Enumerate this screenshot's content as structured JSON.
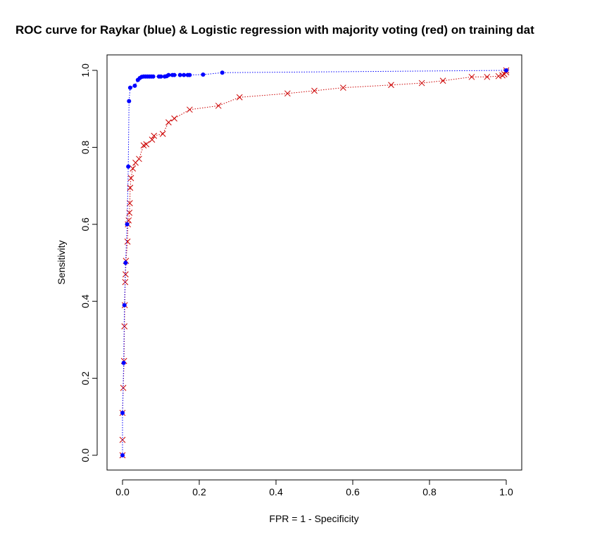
{
  "chart_data": {
    "type": "line",
    "title": "ROC curve for Raykar (blue) & Logistic regression with majority voting (red) on training dat",
    "xlabel": "FPR = 1 - Specificity",
    "ylabel": "Sensitivity",
    "xlim": [
      0,
      1
    ],
    "ylim": [
      0,
      1
    ],
    "x_ticks": [
      "0.0",
      "0.2",
      "0.4",
      "0.6",
      "0.8",
      "1.0"
    ],
    "y_ticks": [
      "0.0",
      "0.2",
      "0.4",
      "0.6",
      "0.8",
      "1.0"
    ],
    "grid": false,
    "legend": "none",
    "series": [
      {
        "color": "#0000ff",
        "marker": "dot",
        "line": "dotted",
        "points": [
          [
            0.0,
            0.0
          ],
          [
            0.0,
            0.11
          ],
          [
            0.003,
            0.24
          ],
          [
            0.005,
            0.39
          ],
          [
            0.008,
            0.5
          ],
          [
            0.012,
            0.6
          ],
          [
            0.015,
            0.75
          ],
          [
            0.017,
            0.92
          ],
          [
            0.02,
            0.955
          ],
          [
            0.032,
            0.96
          ],
          [
            0.04,
            0.975
          ],
          [
            0.045,
            0.98
          ],
          [
            0.05,
            0.983
          ],
          [
            0.055,
            0.984
          ],
          [
            0.06,
            0.984
          ],
          [
            0.065,
            0.984
          ],
          [
            0.07,
            0.984
          ],
          [
            0.075,
            0.984
          ],
          [
            0.08,
            0.984
          ],
          [
            0.095,
            0.984
          ],
          [
            0.1,
            0.984
          ],
          [
            0.11,
            0.984
          ],
          [
            0.115,
            0.985
          ],
          [
            0.12,
            0.988
          ],
          [
            0.13,
            0.988
          ],
          [
            0.135,
            0.988
          ],
          [
            0.15,
            0.988
          ],
          [
            0.16,
            0.988
          ],
          [
            0.17,
            0.988
          ],
          [
            0.175,
            0.988
          ],
          [
            0.21,
            0.989
          ],
          [
            0.26,
            0.994
          ],
          [
            1.0,
            1.0
          ]
        ]
      },
      {
        "color": "#cc0000",
        "marker": "x",
        "line": "dotted",
        "points": [
          [
            0.0,
            0.0
          ],
          [
            0.0,
            0.04
          ],
          [
            0.0,
            0.11
          ],
          [
            0.002,
            0.175
          ],
          [
            0.004,
            0.245
          ],
          [
            0.005,
            0.335
          ],
          [
            0.006,
            0.39
          ],
          [
            0.007,
            0.45
          ],
          [
            0.008,
            0.47
          ],
          [
            0.009,
            0.505
          ],
          [
            0.013,
            0.555
          ],
          [
            0.014,
            0.6
          ],
          [
            0.016,
            0.61
          ],
          [
            0.018,
            0.63
          ],
          [
            0.019,
            0.655
          ],
          [
            0.02,
            0.695
          ],
          [
            0.022,
            0.72
          ],
          [
            0.027,
            0.745
          ],
          [
            0.034,
            0.76
          ],
          [
            0.043,
            0.77
          ],
          [
            0.055,
            0.805
          ],
          [
            0.062,
            0.808
          ],
          [
            0.077,
            0.82
          ],
          [
            0.082,
            0.83
          ],
          [
            0.105,
            0.835
          ],
          [
            0.12,
            0.865
          ],
          [
            0.135,
            0.875
          ],
          [
            0.175,
            0.898
          ],
          [
            0.25,
            0.908
          ],
          [
            0.305,
            0.93
          ],
          [
            0.43,
            0.94
          ],
          [
            0.5,
            0.947
          ],
          [
            0.575,
            0.955
          ],
          [
            0.7,
            0.962
          ],
          [
            0.78,
            0.967
          ],
          [
            0.835,
            0.973
          ],
          [
            0.91,
            0.983
          ],
          [
            0.95,
            0.983
          ],
          [
            0.98,
            0.985
          ],
          [
            0.99,
            0.987
          ],
          [
            0.995,
            0.99
          ],
          [
            1.0,
            0.995
          ],
          [
            1.0,
            1.0
          ]
        ]
      }
    ]
  }
}
